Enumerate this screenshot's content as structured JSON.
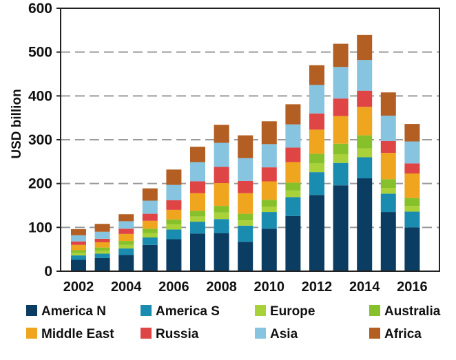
{
  "chart_data": {
    "type": "bar",
    "stacked": true,
    "title": "",
    "xlabel": "",
    "ylabel": "USD billion",
    "ylim": [
      0,
      600
    ],
    "yticks": [
      0,
      100,
      200,
      300,
      400,
      500,
      600
    ],
    "grid": "horizontal dashed",
    "legend_position": "bottom",
    "categories": [
      2002,
      2003,
      2004,
      2005,
      2006,
      2007,
      2008,
      2009,
      2010,
      2011,
      2012,
      2013,
      2014,
      2015,
      2016
    ],
    "xtick_labels": [
      "2002",
      "2004",
      "2006",
      "2008",
      "2010",
      "2012",
      "2014",
      "2016"
    ],
    "series": [
      {
        "name": "America N",
        "color": "#0b3d63",
        "values": [
          26,
          30,
          37,
          60,
          73,
          86,
          87,
          67,
          97,
          126,
          174,
          196,
          212,
          135,
          100
        ]
      },
      {
        "name": "America S",
        "color": "#1a8cb0",
        "values": [
          10,
          10,
          15,
          17,
          22,
          27,
          32,
          37,
          38,
          43,
          52,
          51,
          48,
          42,
          36
        ]
      },
      {
        "name": "Europe",
        "color": "#a8d13a",
        "values": [
          6,
          7,
          8,
          10,
          12,
          12,
          15,
          12,
          12,
          15,
          20,
          20,
          20,
          13,
          13
        ]
      },
      {
        "name": "Australia",
        "color": "#86c02a",
        "values": [
          6,
          7,
          9,
          10,
          11,
          13,
          15,
          15,
          16,
          18,
          22,
          24,
          30,
          20,
          18
        ]
      },
      {
        "name": "Middle East",
        "color": "#f0a51e",
        "values": [
          12,
          12,
          16,
          18,
          22,
          40,
          52,
          47,
          42,
          47,
          55,
          63,
          65,
          60,
          56
        ]
      },
      {
        "name": "Russia",
        "color": "#e04545",
        "values": [
          8,
          8,
          12,
          16,
          22,
          27,
          37,
          28,
          32,
          33,
          37,
          40,
          37,
          27,
          23
        ]
      },
      {
        "name": "Asia",
        "color": "#86c4e0",
        "values": [
          14,
          16,
          17,
          30,
          35,
          44,
          55,
          52,
          53,
          53,
          65,
          72,
          70,
          58,
          50
        ]
      },
      {
        "name": "Africa",
        "color": "#b35e22",
        "values": [
          14,
          18,
          16,
          28,
          35,
          35,
          41,
          52,
          52,
          46,
          45,
          53,
          57,
          53,
          40
        ]
      }
    ]
  }
}
